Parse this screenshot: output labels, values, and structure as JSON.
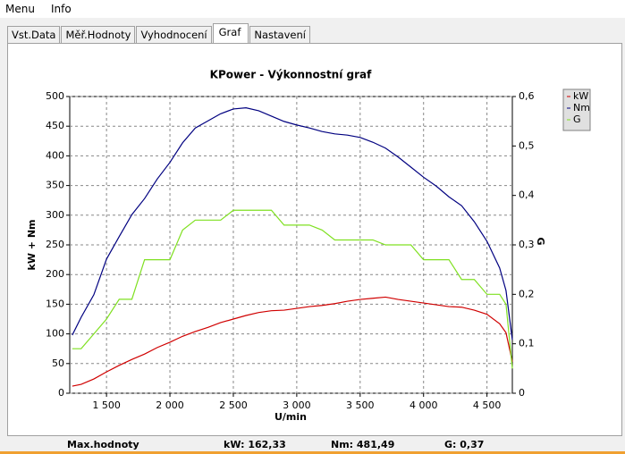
{
  "menu": [
    "Menu",
    "Info"
  ],
  "tabs": [
    "Vst.Data",
    "Měř.Hodnoty",
    "Vyhodnocení",
    "Graf",
    "Nastavení"
  ],
  "active_tab": 3,
  "status": {
    "label": "Max.hodnoty",
    "items": [
      "kW: 162,33",
      "Nm: 481,49",
      "G: 0,37"
    ]
  },
  "chart_data": {
    "type": "line",
    "title": "KPower - Výkonnostní graf",
    "x_label": "U/min",
    "y_label": "kW + Nm",
    "y2_label": "G",
    "grid": true,
    "x": [
      1230,
      1300,
      1400,
      1500,
      1600,
      1700,
      1800,
      1900,
      2000,
      2100,
      2200,
      2300,
      2400,
      2500,
      2600,
      2700,
      2800,
      2900,
      3000,
      3100,
      3200,
      3300,
      3400,
      3500,
      3600,
      3700,
      3800,
      3900,
      4000,
      4100,
      4200,
      4300,
      4400,
      4500,
      4600,
      4650,
      4700
    ],
    "series": [
      {
        "name": "kW",
        "color": "#d00000",
        "values": [
          12,
          15,
          24,
          36,
          47,
          57,
          66,
          77,
          86,
          96,
          104,
          111,
          119,
          125,
          131,
          136,
          139,
          140,
          143,
          146,
          148,
          151,
          155,
          158,
          160,
          162,
          158,
          155,
          152,
          149,
          146,
          145,
          140,
          133,
          117,
          102,
          53
        ]
      },
      {
        "name": "Nm",
        "color": "#000080",
        "values": [
          98,
          128,
          166,
          226,
          264,
          301,
          328,
          361,
          389,
          422,
          447,
          459,
          471,
          479,
          481,
          476,
          467,
          458,
          452,
          447,
          441,
          437,
          435,
          431,
          423,
          413,
          398,
          381,
          364,
          349,
          331,
          316,
          289,
          256,
          211,
          173,
          90
        ]
      },
      {
        "name": "G",
        "color": "#7fe020",
        "axis": "y2",
        "values": [
          0.09,
          0.09,
          0.12,
          0.15,
          0.19,
          0.19,
          0.27,
          0.27,
          0.27,
          0.33,
          0.35,
          0.35,
          0.35,
          0.37,
          0.37,
          0.37,
          0.37,
          0.34,
          0.34,
          0.34,
          0.33,
          0.31,
          0.31,
          0.31,
          0.31,
          0.3,
          0.3,
          0.3,
          0.27,
          0.27,
          0.27,
          0.23,
          0.23,
          0.2,
          0.2,
          0.18,
          0.05
        ]
      }
    ],
    "xlim": [
      1210,
      4700
    ],
    "xticks": [
      {
        "value": 1500,
        "label": "1 500"
      },
      {
        "value": 2000,
        "label": "2 000"
      },
      {
        "value": 2500,
        "label": "2 500"
      },
      {
        "value": 3000,
        "label": "3 000"
      },
      {
        "value": 3500,
        "label": "3 500"
      },
      {
        "value": 4000,
        "label": "4 000"
      },
      {
        "value": 4500,
        "label": "4 500"
      }
    ],
    "ylim": [
      0,
      500
    ],
    "yticks": [
      0,
      50,
      100,
      150,
      200,
      250,
      300,
      350,
      400,
      450,
      500
    ],
    "y2lim": [
      0,
      0.6
    ],
    "y2ticks": [
      0,
      {
        "value": 0.1,
        "label": "0,1"
      },
      {
        "value": 0.2,
        "label": "0,2"
      },
      {
        "value": 0.3,
        "label": "0,3"
      },
      {
        "value": 0.4,
        "label": "0,4"
      },
      {
        "value": 0.5,
        "label": "0,5"
      },
      {
        "value": 0.6,
        "label": "0,6"
      }
    ]
  }
}
